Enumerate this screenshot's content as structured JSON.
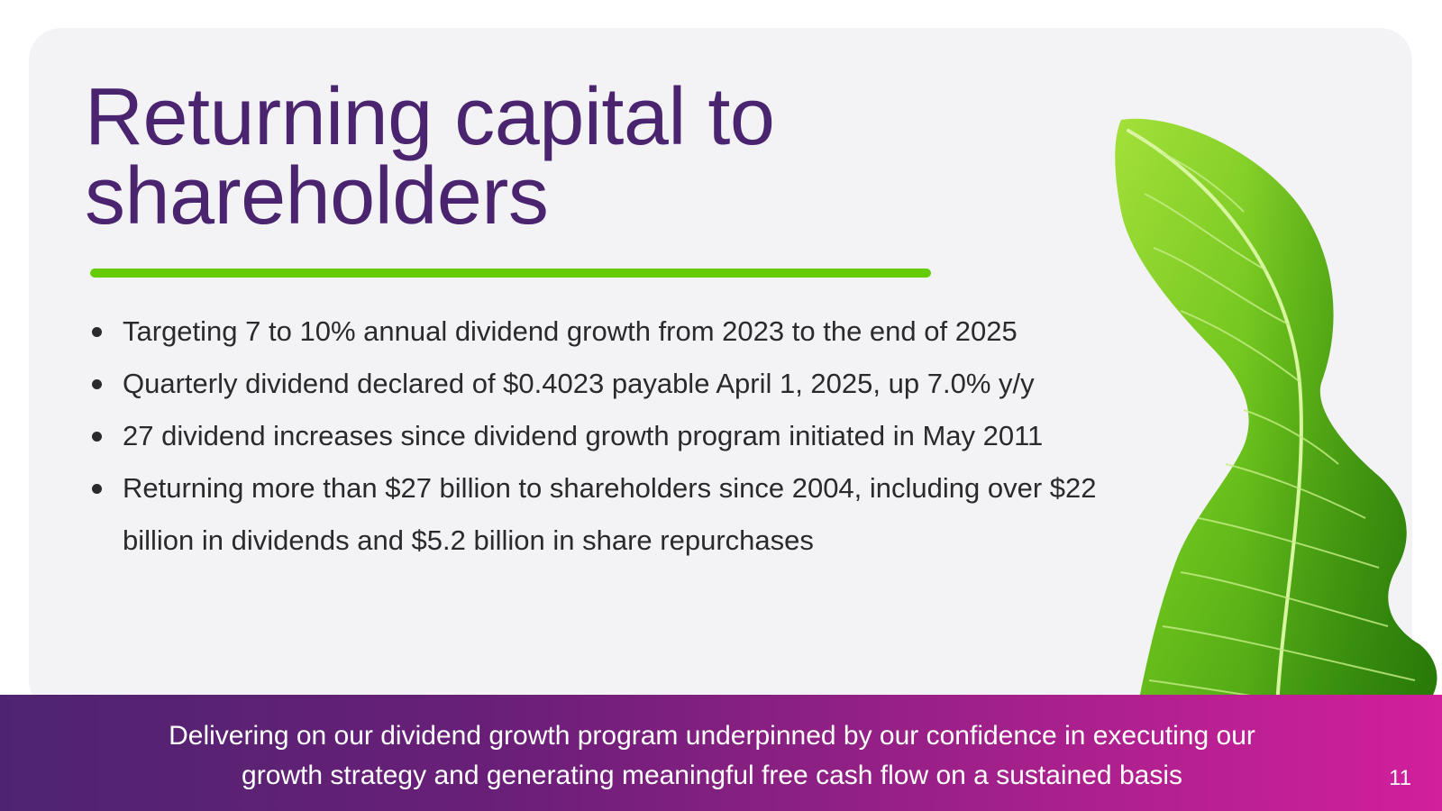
{
  "slide": {
    "title": "Returning capital to\nshareholders",
    "bullets": [
      "Targeting 7 to 10% annual dividend growth from 2023 to the end of 2025",
      "Quarterly dividend declared of $0.4023 payable April 1, 2025, up 7.0% y/y",
      "27 dividend increases since dividend growth program initiated in May 2011",
      "Returning more than $27 billion to shareholders since 2004, including over $22 billion in dividends and $5.2 billion in share repurchases"
    ],
    "footer_text": "Delivering on our dividend growth program underpinned by our confidence in executing our\ngrowth strategy and generating meaningful free cash flow on a sustained basis",
    "page_number": "11",
    "decoration": "green-leaf-image"
  },
  "colors": {
    "title": "#4b2470",
    "accent": "#66cc0a",
    "card_background": "#f3f3f6",
    "footer_gradient_start": "#4e2470",
    "footer_gradient_end": "#d21f9c",
    "body_text": "#2a2a2a"
  }
}
